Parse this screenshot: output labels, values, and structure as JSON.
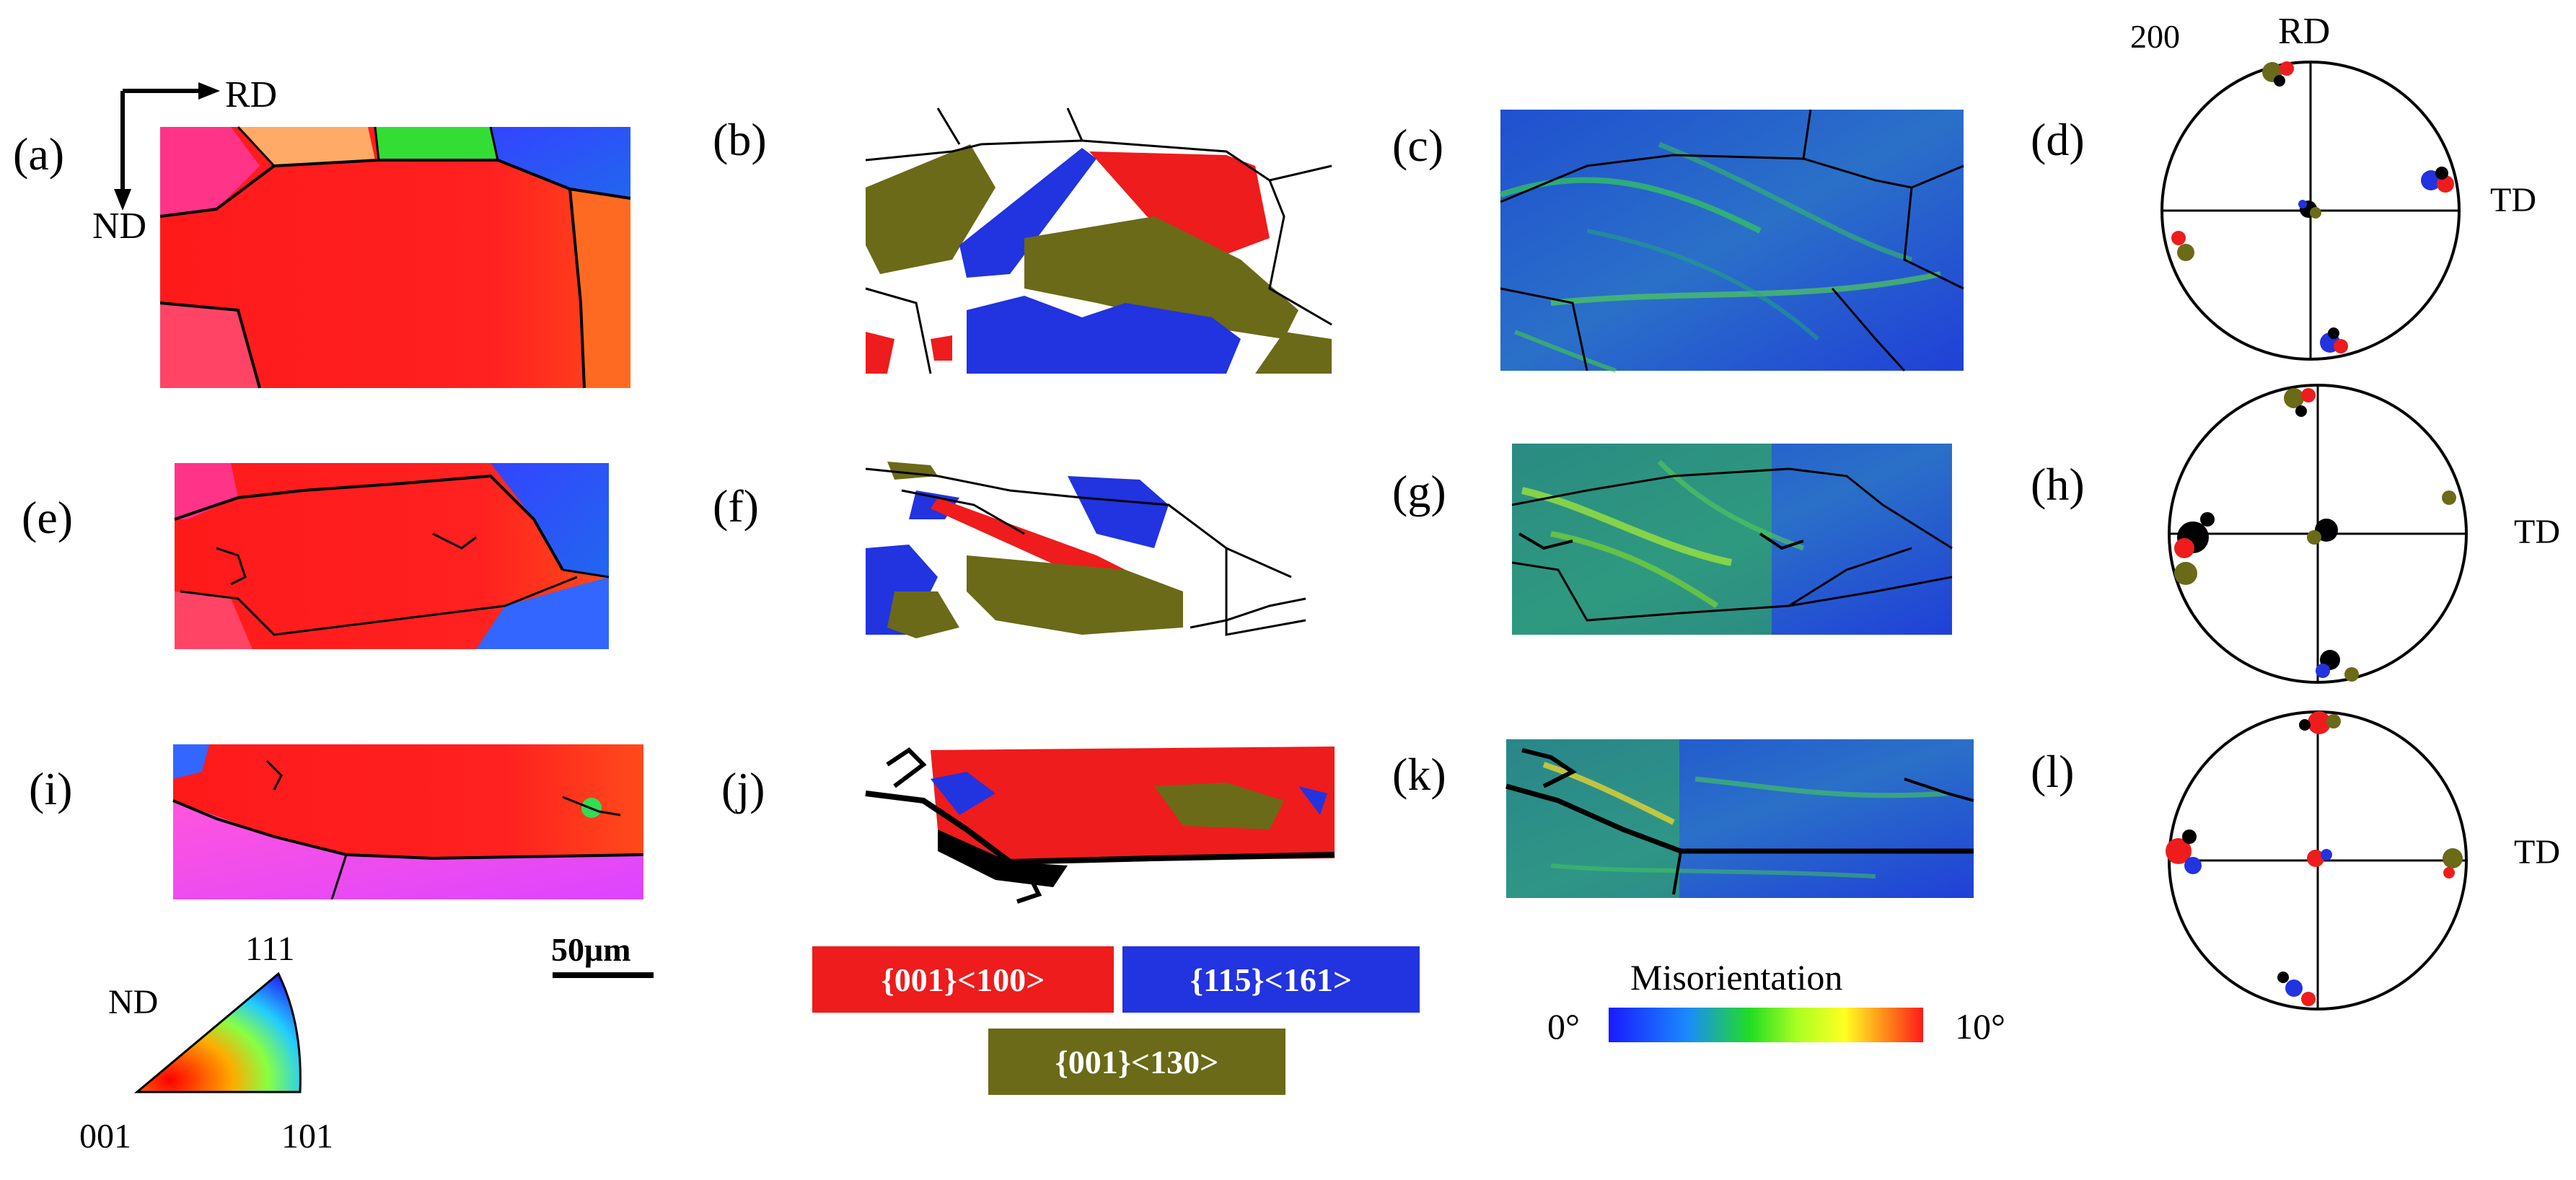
{
  "panel_labels": [
    "(a)",
    "(b)",
    "(c)",
    "(d)",
    "(e)",
    "(f)",
    "(g)",
    "(h)",
    "(i)",
    "(j)",
    "(k)",
    "(l)"
  ],
  "axes": {
    "rd": "RD",
    "nd": "ND",
    "td": "TD",
    "pole_figure_index": "200"
  },
  "scale_bar": {
    "label": "50μm"
  },
  "ipf_legend": {
    "axis": "ND",
    "corners": [
      "001",
      "101",
      "111"
    ]
  },
  "texture_legend": [
    {
      "label": "{001}<100>",
      "color": "#ee1c1c"
    },
    {
      "label": "{115}<161>",
      "color": "#2233e0"
    },
    {
      "label": "{001}<130>",
      "color": "#6b6a18"
    }
  ],
  "misorientation_legend": {
    "title": "Misorientation",
    "min": "0°",
    "max": "10°"
  }
}
